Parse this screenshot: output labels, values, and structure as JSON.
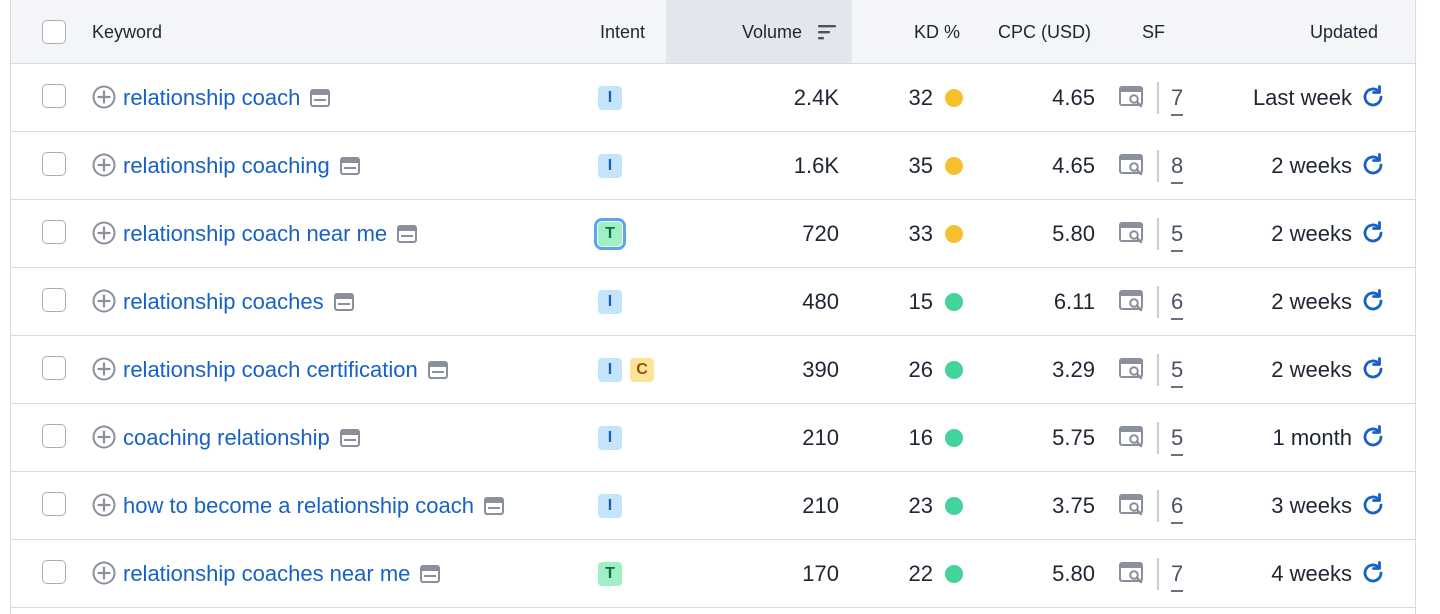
{
  "header": {
    "keyword": "Keyword",
    "intent": "Intent",
    "volume": "Volume",
    "kd": "KD %",
    "cpc": "CPC (USD)",
    "sf": "SF",
    "updated": "Updated"
  },
  "colors": {
    "link": "#1762c4",
    "kd_medium": "#f5bf2e",
    "kd_easy": "#43d49b",
    "intent_informational": "#c3e4fb",
    "intent_transactional": "#9ff0c5",
    "intent_commercial": "#fde399"
  },
  "rows": [
    {
      "keyword": "relationship coach",
      "intents": [
        "I"
      ],
      "volume": "2.4K",
      "kd": "32",
      "kd_level": "medium",
      "cpc": "4.65",
      "sf": "7",
      "updated": "Last week"
    },
    {
      "keyword": "relationship coaching",
      "intents": [
        "I"
      ],
      "volume": "1.6K",
      "kd": "35",
      "kd_level": "medium",
      "cpc": "4.65",
      "sf": "8",
      "updated": "2 weeks"
    },
    {
      "keyword": "relationship coach near me",
      "intents": [
        "T"
      ],
      "volume": "720",
      "kd": "33",
      "kd_level": "medium",
      "cpc": "5.80",
      "sf": "5",
      "updated": "2 weeks",
      "highlighted_intent": true
    },
    {
      "keyword": "relationship coaches",
      "intents": [
        "I"
      ],
      "volume": "480",
      "kd": "15",
      "kd_level": "easy",
      "cpc": "6.11",
      "sf": "6",
      "updated": "2 weeks"
    },
    {
      "keyword": "relationship coach certification",
      "intents": [
        "I",
        "C"
      ],
      "volume": "390",
      "kd": "26",
      "kd_level": "easy",
      "cpc": "3.29",
      "sf": "5",
      "updated": "2 weeks"
    },
    {
      "keyword": "coaching relationship",
      "intents": [
        "I"
      ],
      "volume": "210",
      "kd": "16",
      "kd_level": "easy",
      "cpc": "5.75",
      "sf": "5",
      "updated": "1 month"
    },
    {
      "keyword": "how to become a relationship coach",
      "intents": [
        "I"
      ],
      "volume": "210",
      "kd": "23",
      "kd_level": "easy",
      "cpc": "3.75",
      "sf": "6",
      "updated": "3 weeks"
    },
    {
      "keyword": "relationship coaches near me",
      "intents": [
        "T"
      ],
      "volume": "170",
      "kd": "22",
      "kd_level": "easy",
      "cpc": "5.80",
      "sf": "7",
      "updated": "4 weeks"
    }
  ]
}
